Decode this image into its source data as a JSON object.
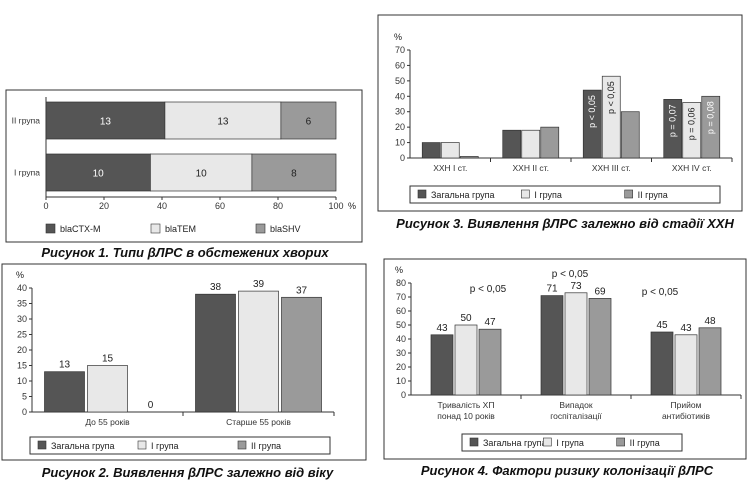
{
  "colors": {
    "series1": "#555555",
    "series2": "#e8e8e8",
    "series3": "#9a9a9a",
    "frame": "#333333"
  },
  "charts": [
    {
      "caption": "Рисунок 1. Типи βЛРС в обстежених хворих",
      "chart_data": {
        "type": "bar",
        "orientation": "horizontal",
        "stacked": true,
        "categories": [
          "II група",
          "I група"
        ],
        "series": [
          {
            "name": "blaCTX-M",
            "values": [
              13,
              10
            ],
            "percent": [
              41,
              36
            ]
          },
          {
            "name": "blaTEM",
            "values": [
              13,
              10
            ],
            "percent": [
              40,
              35
            ]
          },
          {
            "name": "blaSHV",
            "values": [
              6,
              8
            ],
            "percent": [
              19,
              29
            ]
          }
        ],
        "xticks": [
          "0",
          "20",
          "40",
          "60",
          "80",
          "100"
        ],
        "xlim": [
          0,
          100
        ],
        "xunit": "%",
        "legend": "bottom"
      }
    },
    {
      "caption": "Рисунок 2. Виявлення βЛРС залежно від віку",
      "chart_data": {
        "type": "bar",
        "categories": [
          "До 55 років",
          "Старше 55 років"
        ],
        "series": [
          {
            "name": "Загальна група",
            "values": [
              13,
              38
            ]
          },
          {
            "name": "I група",
            "values": [
              15,
              39
            ]
          },
          {
            "name": "II група",
            "values": [
              0,
              37
            ]
          }
        ],
        "yticks": [
          "0",
          "5",
          "10",
          "15",
          "20",
          "25",
          "30",
          "35",
          "40"
        ],
        "ylim": [
          0,
          40
        ],
        "yunit": "%",
        "legend": "bottom"
      }
    },
    {
      "caption": "Рисунок 3. Виявлення βЛРС залежно від стадії ХХН",
      "chart_data": {
        "type": "bar",
        "categories": [
          "ХХН I ст.",
          "ХХН II ст.",
          "ХХН III ст.",
          "ХХН IV ст."
        ],
        "series": [
          {
            "name": "Загальна група",
            "values": [
              10,
              18,
              44,
              38
            ],
            "pvalues": [
              "",
              "",
              "p < 0,05",
              "p = 0,07"
            ]
          },
          {
            "name": "I група",
            "values": [
              10,
              18,
              53,
              36
            ],
            "pvalues": [
              "",
              "",
              "p < 0,05",
              "p = 0,06"
            ]
          },
          {
            "name": "II група",
            "values": [
              1,
              20,
              30,
              40
            ],
            "pvalues": [
              "",
              "",
              "",
              "p = 0,08"
            ]
          }
        ],
        "yticks": [
          "0",
          "10",
          "20",
          "30",
          "40",
          "50",
          "60",
          "70"
        ],
        "ylim": [
          0,
          70
        ],
        "yunit": "%",
        "legend": "bottom"
      }
    },
    {
      "caption": "Рисунок 4. Фактори ризику колонізації βЛРС",
      "chart_data": {
        "type": "bar",
        "categories": [
          "Тривалість ХП понад 10 років",
          "Випадок госпіталізації",
          "Прийом антибіотиків"
        ],
        "category_lines": [
          [
            "Тривалість ХП",
            "понад 10 років"
          ],
          [
            "Випадок",
            "госпіталізації"
          ],
          [
            "Прийом",
            "антибіотиків"
          ]
        ],
        "series": [
          {
            "name": "Загальна група",
            "values": [
              43,
              71,
              45
            ]
          },
          {
            "name": "I група",
            "values": [
              50,
              73,
              43
            ]
          },
          {
            "name": "II група",
            "values": [
              47,
              69,
              48
            ]
          }
        ],
        "annotations": [
          "p < 0,05",
          "p < 0,05",
          "p < 0,05"
        ],
        "yticks": [
          "0",
          "10",
          "20",
          "30",
          "40",
          "50",
          "60",
          "70",
          "80"
        ],
        "ylim": [
          0,
          80
        ],
        "yunit": "%",
        "legend": "bottom"
      }
    }
  ]
}
